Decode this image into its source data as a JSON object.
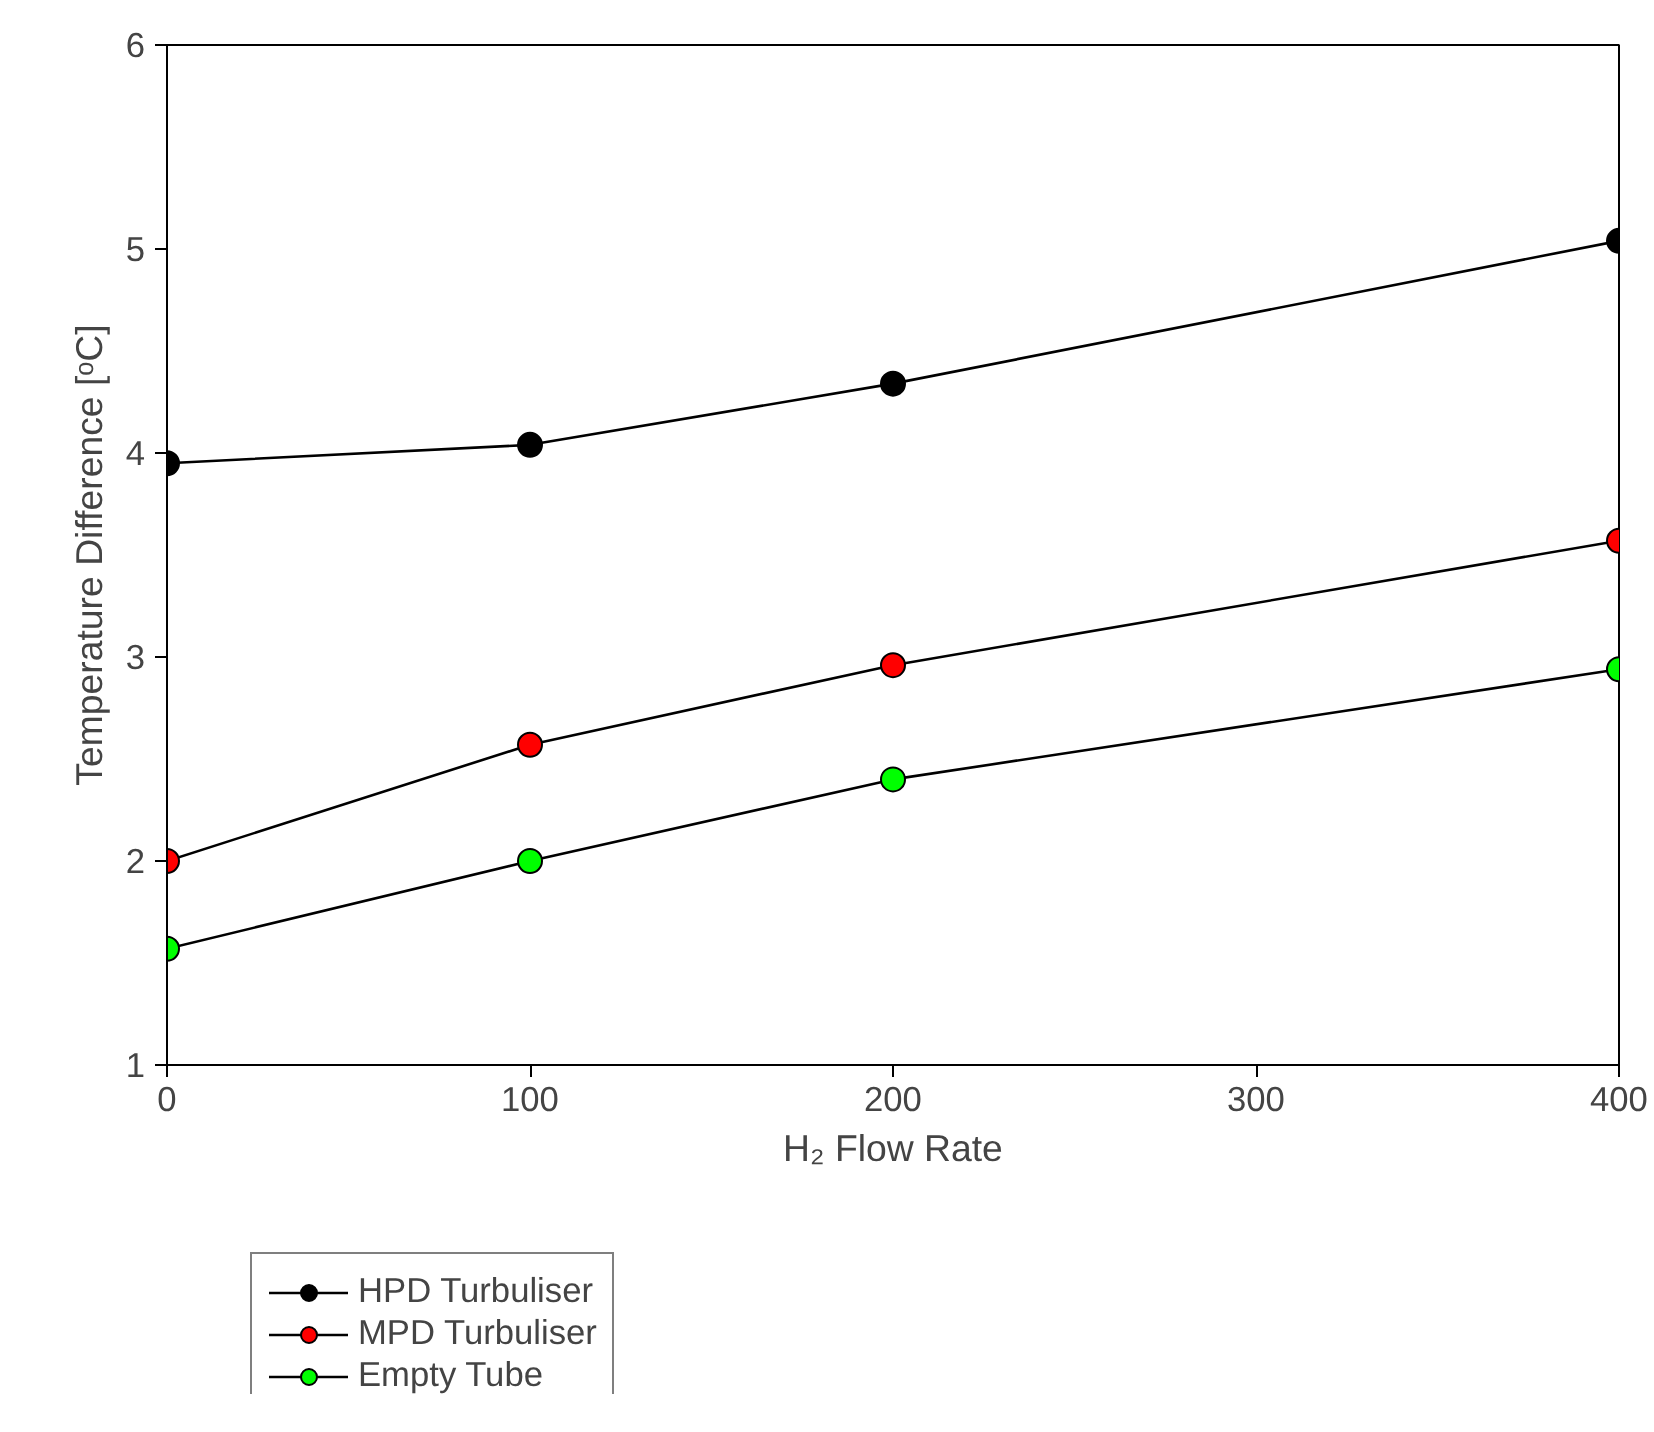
{
  "chart_data": {
    "type": "line",
    "xlabel": "H₂ Flow Rate",
    "ylabel": "Temperature Difference [ᵒC]",
    "x": [
      0,
      100,
      200,
      400
    ],
    "xlim": [
      0,
      400
    ],
    "xticks": [
      0,
      100,
      200,
      300,
      400
    ],
    "ylim": [
      1,
      6
    ],
    "yticks": [
      1,
      2,
      3,
      4,
      5,
      6
    ],
    "grid": false,
    "legend": "bottom left",
    "marker": "circle",
    "line_style": "solid",
    "series": [
      {
        "name": "HPD Turbuliser",
        "color": "#000000",
        "values": [
          3.95,
          4.04,
          4.34,
          5.04
        ]
      },
      {
        "name": "MPD Turbuliser",
        "color": "#ff0000",
        "values": [
          2.0,
          2.57,
          2.96,
          3.57
        ]
      },
      {
        "name": "Empty Tube",
        "color": "#00ff00",
        "values": [
          1.57,
          2.0,
          2.4,
          2.94
        ]
      }
    ]
  }
}
